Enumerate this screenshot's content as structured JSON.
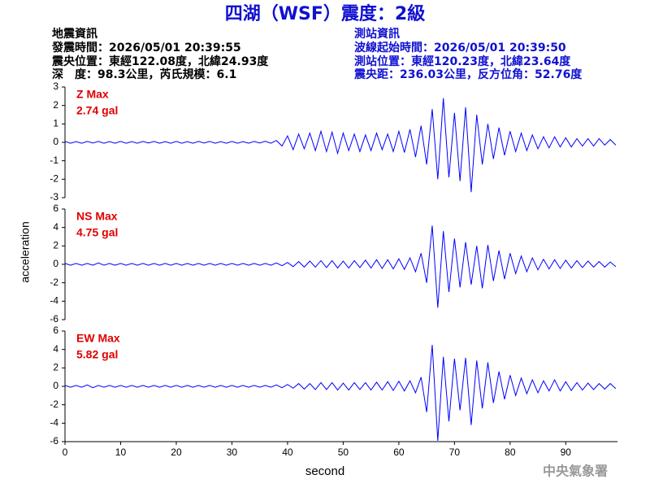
{
  "header": {
    "title": "四湖（WSF）震度：2級",
    "left": [
      "地震資訊",
      "發震時間：2026/05/01 20:39:55",
      "震央位置：東經122.08度，北緯24.93度",
      "深　度：98.3公里，芮氏規模：6.1"
    ],
    "right": [
      "測站資訊",
      "波線起始時間：2026/05/01 20:39:50",
      "測站位置：東經120.23度，北緯23.64度",
      "震央距：236.03公里，反方位角：52.76度"
    ],
    "footer": "中央氣象署"
  },
  "chart_data": [
    {
      "type": "line",
      "annotations": [
        "Z Max",
        "2.74 gal"
      ],
      "color": "#0000ff",
      "xlim": [
        0,
        99.3
      ],
      "ylim": [
        -3,
        3
      ],
      "yticks": [
        -3,
        -2,
        -1,
        0,
        1,
        2,
        3
      ],
      "x": [
        0,
        1,
        2,
        3,
        4,
        5,
        6,
        7,
        8,
        9,
        10,
        11,
        12,
        13,
        14,
        15,
        16,
        17,
        18,
        19,
        20,
        21,
        22,
        23,
        24,
        25,
        26,
        27,
        28,
        29,
        30,
        31,
        32,
        33,
        34,
        35,
        36,
        37,
        38,
        39,
        40,
        41,
        42,
        43,
        44,
        45,
        46,
        47,
        48,
        49,
        50,
        51,
        52,
        53,
        54,
        55,
        56,
        57,
        58,
        59,
        60,
        61,
        62,
        63,
        64,
        65,
        66,
        67,
        68,
        69,
        70,
        71,
        72,
        73,
        74,
        75,
        76,
        77,
        78,
        79,
        80,
        81,
        82,
        83,
        84,
        85,
        86,
        87,
        88,
        89,
        90,
        91,
        92,
        93,
        94,
        95,
        96,
        97,
        98,
        99
      ],
      "values": [
        0.05,
        -0.05,
        0.04,
        -0.05,
        0.05,
        -0.04,
        0.05,
        -0.05,
        0.04,
        -0.05,
        0.05,
        -0.05,
        0.04,
        -0.05,
        0.05,
        -0.04,
        0.05,
        -0.05,
        0.04,
        -0.05,
        0.05,
        -0.05,
        0.04,
        -0.05,
        0.05,
        -0.04,
        0.05,
        -0.05,
        0.04,
        -0.05,
        0.05,
        -0.05,
        0.04,
        -0.05,
        0.05,
        -0.04,
        0.06,
        -0.05,
        0.1,
        -0.2,
        0.35,
        -0.4,
        0.45,
        -0.35,
        0.5,
        -0.45,
        0.6,
        -0.5,
        0.55,
        -0.6,
        0.5,
        -0.45,
        0.45,
        -0.5,
        0.4,
        -0.45,
        0.5,
        -0.4,
        0.45,
        -0.5,
        0.6,
        -0.55,
        0.7,
        -0.8,
        0.9,
        -1.2,
        1.8,
        -2.0,
        2.4,
        -1.9,
        1.6,
        -2.1,
        1.9,
        -2.7,
        1.5,
        -1.2,
        1.0,
        -0.9,
        0.8,
        -0.7,
        0.6,
        -0.5,
        0.5,
        -0.45,
        0.4,
        -0.35,
        0.3,
        -0.3,
        0.3,
        -0.25,
        0.25,
        -0.25,
        0.2,
        -0.2,
        0.2,
        -0.2,
        0.2,
        -0.15,
        0.15,
        -0.15
      ]
    },
    {
      "type": "line",
      "annotations": [
        "NS Max",
        "4.75 gal"
      ],
      "color": "#0000ff",
      "ylabel": "acceleration",
      "xlim": [
        0,
        99.3
      ],
      "ylim": [
        -6,
        6
      ],
      "yticks": [
        -6,
        -4,
        -2,
        0,
        2,
        4,
        6
      ],
      "x": [
        0,
        1,
        2,
        3,
        4,
        5,
        6,
        7,
        8,
        9,
        10,
        11,
        12,
        13,
        14,
        15,
        16,
        17,
        18,
        19,
        20,
        21,
        22,
        23,
        24,
        25,
        26,
        27,
        28,
        29,
        30,
        31,
        32,
        33,
        34,
        35,
        36,
        37,
        38,
        39,
        40,
        41,
        42,
        43,
        44,
        45,
        46,
        47,
        48,
        49,
        50,
        51,
        52,
        53,
        54,
        55,
        56,
        57,
        58,
        59,
        60,
        61,
        62,
        63,
        64,
        65,
        66,
        67,
        68,
        69,
        70,
        71,
        72,
        73,
        74,
        75,
        76,
        77,
        78,
        79,
        80,
        81,
        82,
        83,
        84,
        85,
        86,
        87,
        88,
        89,
        90,
        91,
        92,
        93,
        94,
        95,
        96,
        97,
        98,
        99
      ],
      "values": [
        0.1,
        -0.1,
        0.1,
        -0.1,
        0.1,
        -0.1,
        0.15,
        -0.1,
        0.1,
        -0.1,
        0.1,
        -0.1,
        0.1,
        -0.1,
        0.1,
        -0.1,
        0.1,
        -0.1,
        0.1,
        -0.1,
        0.1,
        -0.1,
        0.1,
        -0.1,
        0.1,
        -0.1,
        0.1,
        -0.1,
        0.1,
        -0.1,
        0.1,
        -0.1,
        0.1,
        -0.1,
        0.1,
        -0.1,
        0.1,
        -0.1,
        0.15,
        -0.15,
        0.2,
        -0.25,
        0.3,
        -0.3,
        0.35,
        -0.3,
        0.4,
        -0.35,
        0.4,
        -0.4,
        0.35,
        -0.4,
        0.4,
        -0.35,
        0.45,
        -0.4,
        0.5,
        -0.45,
        0.5,
        -0.5,
        0.6,
        -0.55,
        0.7,
        -0.8,
        1.2,
        -2.0,
        4.2,
        -4.7,
        3.6,
        -3.0,
        2.8,
        -2.5,
        2.4,
        -2.2,
        2.0,
        -2.6,
        2.1,
        -1.8,
        1.5,
        -1.6,
        1.2,
        -1.0,
        0.9,
        -0.8,
        0.7,
        -0.6,
        0.55,
        -0.5,
        0.5,
        -0.45,
        0.45,
        -0.4,
        0.4,
        -0.35,
        0.35,
        -0.3,
        0.3,
        -0.3,
        0.25,
        -0.25
      ]
    },
    {
      "type": "line",
      "annotations": [
        "EW Max",
        "5.82 gal"
      ],
      "color": "#0000ff",
      "xlabel": "second",
      "xlim": [
        0,
        99.3
      ],
      "xticks": [
        0,
        10,
        20,
        30,
        40,
        50,
        60,
        70,
        80,
        90
      ],
      "ylim": [
        -6,
        6
      ],
      "yticks": [
        -6,
        -4,
        -2,
        0,
        2,
        4,
        6
      ],
      "x": [
        0,
        1,
        2,
        3,
        4,
        5,
        6,
        7,
        8,
        9,
        10,
        11,
        12,
        13,
        14,
        15,
        16,
        17,
        18,
        19,
        20,
        21,
        22,
        23,
        24,
        25,
        26,
        27,
        28,
        29,
        30,
        31,
        32,
        33,
        34,
        35,
        36,
        37,
        38,
        39,
        40,
        41,
        42,
        43,
        44,
        45,
        46,
        47,
        48,
        49,
        50,
        51,
        52,
        53,
        54,
        55,
        56,
        57,
        58,
        59,
        60,
        61,
        62,
        63,
        64,
        65,
        66,
        67,
        68,
        69,
        70,
        71,
        72,
        73,
        74,
        75,
        76,
        77,
        78,
        79,
        80,
        81,
        82,
        83,
        84,
        85,
        86,
        87,
        88,
        89,
        90,
        91,
        92,
        93,
        94,
        95,
        96,
        97,
        98,
        99
      ],
      "values": [
        0.1,
        -0.1,
        0.1,
        -0.1,
        0.15,
        -0.15,
        0.1,
        -0.1,
        0.1,
        -0.1,
        0.1,
        -0.1,
        0.1,
        -0.1,
        0.1,
        -0.1,
        0.1,
        -0.1,
        0.1,
        -0.1,
        0.1,
        -0.1,
        0.1,
        -0.1,
        0.1,
        -0.1,
        0.1,
        -0.1,
        0.1,
        -0.1,
        0.1,
        -0.1,
        0.1,
        -0.1,
        0.1,
        -0.1,
        0.1,
        -0.1,
        0.15,
        -0.15,
        0.2,
        -0.2,
        0.3,
        -0.3,
        0.3,
        -0.35,
        0.4,
        -0.35,
        0.4,
        -0.4,
        0.35,
        -0.4,
        0.4,
        -0.35,
        0.4,
        -0.4,
        0.45,
        -0.4,
        0.5,
        -0.45,
        0.55,
        -0.5,
        0.6,
        -0.7,
        1.0,
        -2.8,
        4.5,
        -5.9,
        3.2,
        -3.8,
        3.0,
        -2.6,
        3.1,
        -4.2,
        2.8,
        -2.4,
        2.6,
        -1.8,
        1.6,
        -1.4,
        1.2,
        -1.0,
        0.9,
        -0.8,
        0.7,
        -0.7,
        0.6,
        -0.5,
        0.7,
        -0.5,
        0.5,
        -0.45,
        0.4,
        -0.4,
        0.35,
        -0.35,
        0.3,
        -0.3,
        0.3,
        -0.25
      ]
    }
  ]
}
